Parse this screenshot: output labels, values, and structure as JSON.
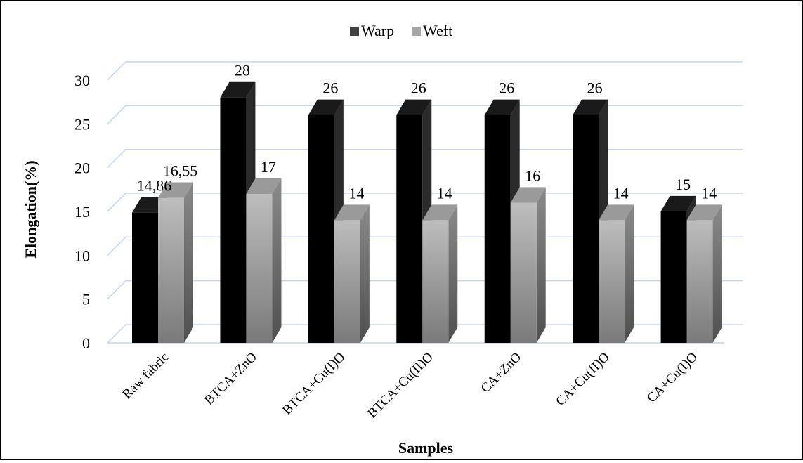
{
  "chart_data": {
    "type": "bar",
    "style": "3d-clustered-column",
    "categories": [
      "Raw fabric",
      "BTCA+ZnO",
      "BTCA+Cu(I)O",
      "BTCA+Cu(II)O",
      "CA+ZnO",
      "CA+Cu(II)O",
      "CA+Cu(I)O"
    ],
    "series": [
      {
        "name": "Warp",
        "values": [
          14.86,
          28,
          26,
          26,
          26,
          26,
          15
        ],
        "labels": [
          "14,86",
          "28",
          "26",
          "26",
          "26",
          "26",
          "15"
        ],
        "color": "#000000"
      },
      {
        "name": "Weft",
        "values": [
          16.55,
          17,
          14,
          14,
          16,
          14,
          14
        ],
        "labels": [
          "16,55",
          "17",
          "14",
          "14",
          "16",
          "14",
          "14"
        ],
        "color": "#a6a6a6"
      }
    ],
    "xlabel": "Samples",
    "ylabel": "Elongation(%)",
    "ylim": [
      0,
      30
    ],
    "yticks": [
      "0",
      "5",
      "10",
      "15",
      "20",
      "25",
      "30"
    ],
    "grid": true,
    "legend_position": "top"
  }
}
